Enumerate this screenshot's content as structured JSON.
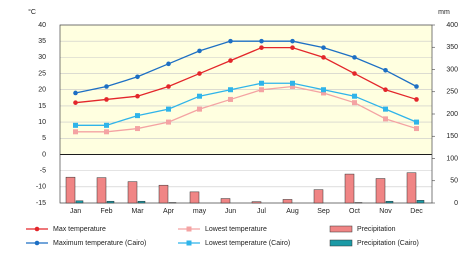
{
  "chart_data": {
    "type": "combo",
    "y_unit": "°C",
    "y2_unit": "mm",
    "categories": [
      "Jan",
      "Feb",
      "Mar",
      "Apr",
      "may",
      "Jun",
      "Jul",
      "Aug",
      "Sep",
      "Oct",
      "Nov",
      "Dec"
    ],
    "ylim": [
      -15,
      40
    ],
    "yticks": [
      -15,
      -10,
      -5,
      0,
      5,
      10,
      15,
      20,
      25,
      30,
      35,
      40
    ],
    "y2lim": [
      0,
      400
    ],
    "y2ticks": [
      0,
      50,
      100,
      150,
      200,
      250,
      300,
      350,
      400
    ],
    "grid": true,
    "series": [
      {
        "name": "Max temperature",
        "type": "line",
        "color": "#e3262b",
        "values": [
          16,
          17,
          18,
          21,
          25,
          29,
          33,
          33,
          30,
          25,
          20,
          17
        ]
      },
      {
        "name": "Lowest temperature",
        "type": "line",
        "color": "#f4a3a3",
        "values": [
          7,
          7,
          8,
          10,
          14,
          17,
          20,
          21,
          19,
          16,
          11,
          8
        ]
      },
      {
        "name": "Precipitation",
        "type": "bar",
        "axis": "y2",
        "color": "#f08585",
        "values": [
          58,
          57,
          48,
          40,
          25,
          10,
          3,
          8,
          30,
          65,
          55,
          68
        ]
      },
      {
        "name": "Maximum temperature (Cairo)",
        "type": "line",
        "color": "#1d6fc4",
        "values": [
          19,
          21,
          24,
          28,
          32,
          35,
          35,
          35,
          33,
          30,
          26,
          21
        ]
      },
      {
        "name": "Lowest temperature (Cairo)",
        "type": "line",
        "color": "#2fb4ea",
        "values": [
          9,
          9,
          12,
          14,
          18,
          20,
          22,
          22,
          20,
          18,
          14,
          10
        ]
      },
      {
        "name": "Precipitation (Cairo)",
        "type": "bar",
        "axis": "y2",
        "color": "#1b9aa6",
        "values": [
          5,
          4,
          4,
          1,
          0,
          0,
          0,
          0,
          0,
          1,
          4,
          6
        ]
      }
    ]
  }
}
